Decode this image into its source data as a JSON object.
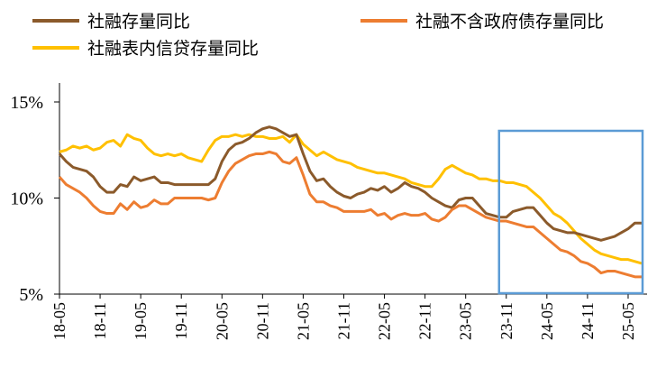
{
  "chart_data": {
    "type": "line",
    "title": "",
    "xlabel": "",
    "ylabel": "",
    "ylim": [
      5,
      15
    ],
    "y_ticks": [
      "5%",
      "10%",
      "15%"
    ],
    "y_tick_values": [
      5,
      10,
      15
    ],
    "x_tick_labels": [
      "18-05",
      "18-11",
      "19-05",
      "19-11",
      "20-05",
      "20-11",
      "21-05",
      "21-11",
      "22-05",
      "22-11",
      "23-05",
      "23-11",
      "24-05",
      "24-11",
      "25-05"
    ],
    "legend_position": "top",
    "highlight_box": {
      "from": "23-11",
      "to": "25-05",
      "color": "#5b9bd5"
    },
    "series": [
      {
        "name": "社融存量同比",
        "color": "#8b5a2b",
        "values": [
          12.3,
          11.9,
          11.6,
          11.5,
          11.4,
          11.1,
          10.6,
          10.3,
          10.3,
          10.7,
          10.6,
          11.1,
          10.9,
          11.0,
          11.1,
          10.8,
          10.8,
          10.7,
          10.7,
          10.7,
          10.7,
          10.7,
          10.7,
          11.0,
          11.9,
          12.5,
          12.8,
          12.9,
          13.1,
          13.4,
          13.6,
          13.7,
          13.6,
          13.4,
          13.2,
          13.3,
          12.3,
          11.4,
          10.9,
          11.0,
          10.6,
          10.3,
          10.1,
          10.0,
          10.2,
          10.3,
          10.5,
          10.4,
          10.6,
          10.3,
          10.5,
          10.8,
          10.6,
          10.5,
          10.3,
          10.0,
          9.8,
          9.6,
          9.5,
          9.9,
          10.0,
          10.0,
          9.6,
          9.2,
          9.1,
          9.0,
          9.0,
          9.3,
          9.4,
          9.5,
          9.5,
          9.1,
          8.7,
          8.4,
          8.3,
          8.2,
          8.2,
          8.1,
          8.0,
          7.9,
          7.8,
          7.9,
          8.0,
          8.2,
          8.4,
          8.7,
          8.7
        ]
      },
      {
        "name": "社融不含政府债存量同比",
        "color": "#ed7d31",
        "values": [
          11.1,
          10.7,
          10.5,
          10.3,
          10.0,
          9.6,
          9.3,
          9.2,
          9.2,
          9.7,
          9.4,
          9.8,
          9.5,
          9.6,
          9.9,
          9.7,
          9.7,
          10.0,
          10.0,
          10.0,
          10.0,
          10.0,
          9.9,
          10.0,
          10.8,
          11.4,
          11.8,
          12.0,
          12.2,
          12.3,
          12.3,
          12.4,
          12.3,
          11.9,
          11.8,
          12.1,
          11.2,
          10.2,
          9.8,
          9.8,
          9.6,
          9.5,
          9.3,
          9.3,
          9.3,
          9.3,
          9.4,
          9.1,
          9.2,
          8.9,
          9.1,
          9.2,
          9.1,
          9.1,
          9.2,
          8.9,
          8.8,
          9.0,
          9.4,
          9.6,
          9.6,
          9.4,
          9.2,
          9.0,
          8.9,
          8.8,
          8.8,
          8.7,
          8.6,
          8.5,
          8.5,
          8.2,
          7.9,
          7.6,
          7.3,
          7.2,
          7.0,
          6.7,
          6.6,
          6.4,
          6.1,
          6.2,
          6.2,
          6.1,
          6.0,
          5.9,
          5.9
        ]
      },
      {
        "name": "社融表内信贷存量同比",
        "color": "#ffc000",
        "values": [
          12.4,
          12.5,
          12.7,
          12.6,
          12.7,
          12.5,
          12.6,
          12.9,
          13.0,
          12.7,
          13.3,
          13.1,
          13.0,
          12.6,
          12.3,
          12.2,
          12.3,
          12.2,
          12.3,
          12.1,
          12.0,
          11.9,
          12.5,
          13.0,
          13.2,
          13.2,
          13.3,
          13.2,
          13.3,
          13.2,
          13.2,
          13.1,
          13.1,
          13.2,
          12.9,
          13.3,
          12.8,
          12.5,
          12.2,
          12.4,
          12.2,
          12.0,
          11.9,
          11.8,
          11.6,
          11.5,
          11.4,
          11.3,
          11.3,
          11.2,
          11.1,
          11.0,
          10.8,
          10.7,
          10.6,
          10.6,
          11.0,
          11.5,
          11.7,
          11.5,
          11.3,
          11.2,
          11.0,
          11.0,
          10.9,
          10.9,
          10.8,
          10.8,
          10.7,
          10.6,
          10.3,
          10.0,
          9.6,
          9.2,
          9.0,
          8.7,
          8.3,
          7.9,
          7.6,
          7.3,
          7.1,
          7.0,
          6.9,
          6.8,
          6.8,
          6.7,
          6.6
        ]
      }
    ]
  }
}
